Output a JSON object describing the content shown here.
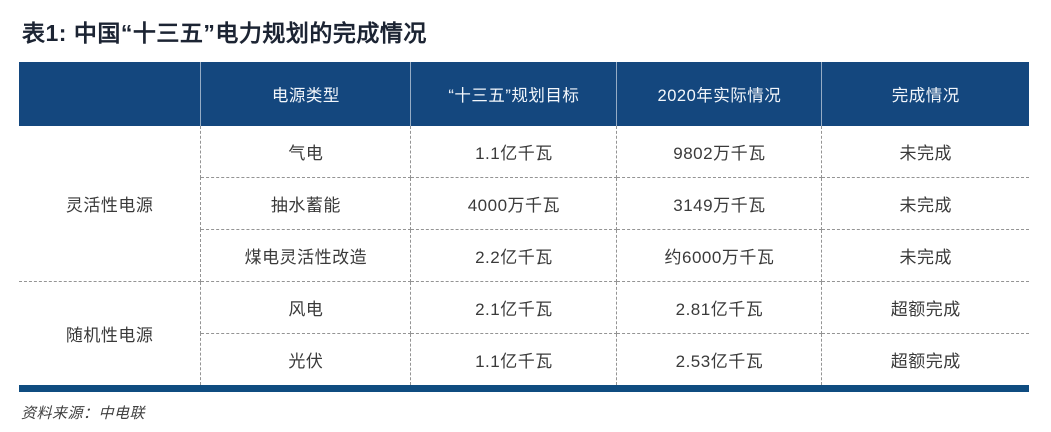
{
  "title": "表1: 中国“十三五”电力规划的完成情况",
  "table": {
    "columns": [
      "",
      "电源类型",
      "“十三五”规划目标",
      "2020年实际情况",
      "完成情况"
    ],
    "groups": [
      {
        "name": "灵活性电源",
        "rows": [
          {
            "type": "气电",
            "target": "1.1亿千瓦",
            "actual": "9802万千瓦",
            "status": "未完成"
          },
          {
            "type": "抽水蓄能",
            "target": "4000万千瓦",
            "actual": "3149万千瓦",
            "status": "未完成"
          },
          {
            "type": "煤电灵活性改造",
            "target": "2.2亿千瓦",
            "actual": "约6000万千瓦",
            "status": "未完成"
          }
        ]
      },
      {
        "name": "随机性电源",
        "rows": [
          {
            "type": "风电",
            "target": "2.1亿千瓦",
            "actual": "2.81亿千瓦",
            "status": "超额完成"
          },
          {
            "type": "光伏",
            "target": "1.1亿千瓦",
            "actual": "2.53亿千瓦",
            "status": "超额完成"
          }
        ]
      }
    ]
  },
  "footer": {
    "source": "资料来源：中电联"
  },
  "colors": {
    "header_bg": "#14477E",
    "bottom_bar": "#0F4C80",
    "title_text": "#1c2433",
    "body_text": "#3a3a3a",
    "dashed_border": "#949494"
  }
}
